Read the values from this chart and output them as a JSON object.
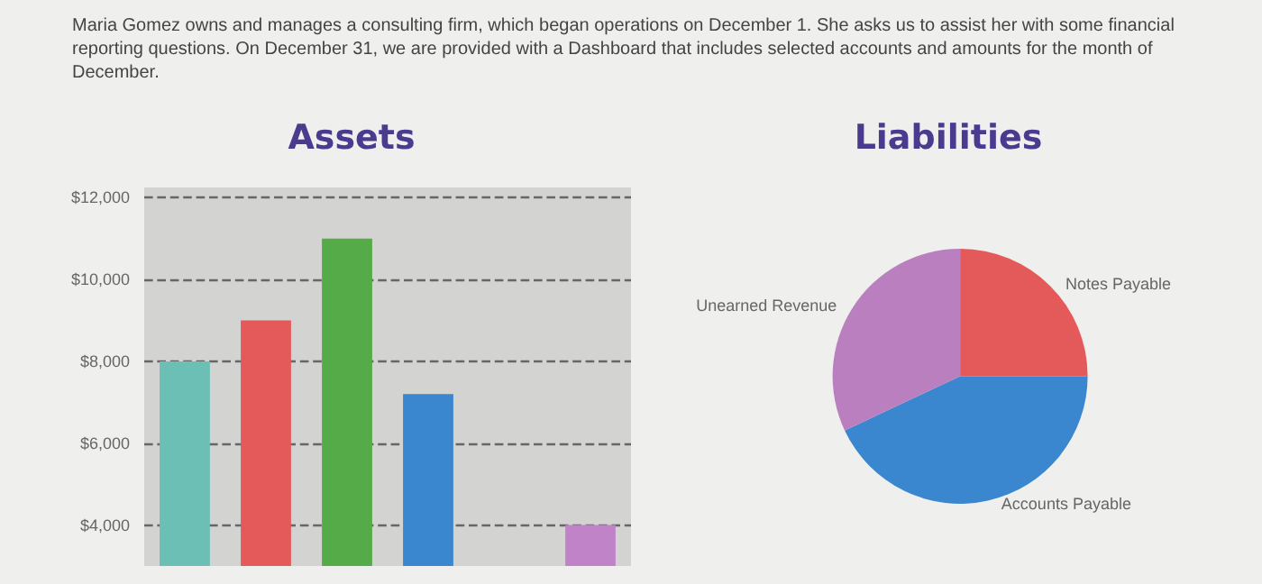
{
  "chart_data": [
    {
      "type": "bar",
      "title": "Assets",
      "annotations": [
        "Maria Gomez owns and manages a consulting firm, which began operations on December 1. She asks us to assist her with some financial reporting questions. On December 31, we are provided with a Dashboard that includes selected accounts and amounts for the month of December."
      ],
      "categories": [
        null,
        null,
        null,
        null,
        null,
        null
      ],
      "values": [
        8000,
        9000,
        11000,
        7200,
        null,
        4000
      ],
      "colors": [
        "#6cbfb4",
        "#e45a5a",
        "#55ab47",
        "#3a86cf",
        "#999999",
        "#c083c8"
      ],
      "ylim": [
        3000,
        12250
      ],
      "yticks": [
        {
          "value": 4000,
          "label": "$4,000"
        },
        {
          "value": 6000,
          "label": "$6,000"
        },
        {
          "value": 8000,
          "label": "$8,000"
        },
        {
          "value": 10000,
          "label": "$10,000"
        },
        {
          "value": 12000,
          "label": "$12,000"
        }
      ],
      "grid": "y"
    },
    {
      "type": "pie",
      "title": "Liabilities",
      "categories": [
        "Notes Payable",
        "Accounts Payable",
        "Unearned Revenue"
      ],
      "values": [
        25,
        43,
        32
      ],
      "colors": [
        "#e45a5a",
        "#3a86cf",
        "#b97fbf"
      ]
    }
  ]
}
